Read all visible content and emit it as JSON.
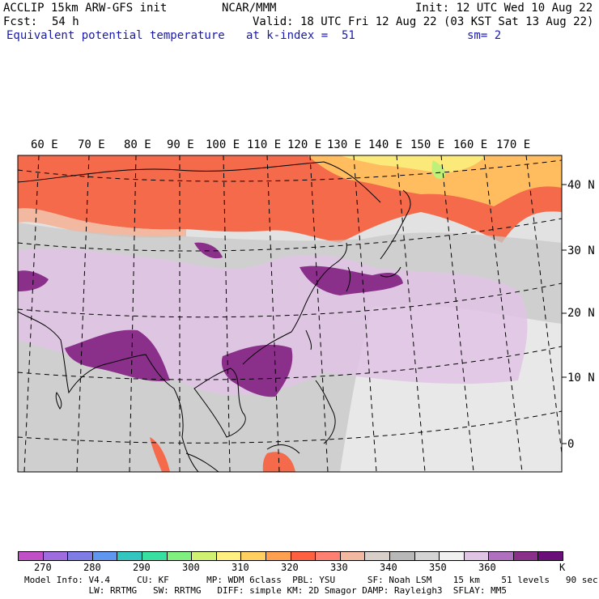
{
  "header": {
    "model": "ACCLIP 15km ARW-GFS init",
    "center": "NCAR/MMM",
    "init": "Init: 12 UTC Wed 10 Aug 22",
    "fcst_label": "Fcst:",
    "fcst_value": "54 h",
    "valid": "Valid: 18 UTC Fri 12 Aug 22 (03 KST Sat 13 Aug 22)",
    "field": "Equivalent potential temperature",
    "level": "at k-index =  51",
    "smooth": "sm= 2"
  },
  "map": {
    "lon_labels": [
      "60 E",
      "70 E",
      "80 E",
      "90 E",
      "100 E",
      "110 E",
      "120 E",
      "130 E",
      "140 E",
      "150 E",
      "160 E",
      "170 E"
    ],
    "lat_labels": [
      "40 N",
      "30 N",
      "20 N",
      "10 N",
      "0"
    ]
  },
  "colorbar": {
    "unit": "K",
    "tick_labels": [
      "270",
      "280",
      "290",
      "300",
      "310",
      "320",
      "330",
      "340",
      "350",
      "360"
    ],
    "colors": [
      "#c04fc8",
      "#9f6ce0",
      "#7f7ce6",
      "#5f96f0",
      "#31c6c0",
      "#37e0a0",
      "#7ff080",
      "#cff070",
      "#ffee80",
      "#ffd060",
      "#ffa050",
      "#ff6040",
      "#ff8070",
      "#f3b8a0",
      "#d8d0c8",
      "#b8b8b8",
      "#d4d4d4",
      "#f0f0f0",
      "#e0c4e6",
      "#b070c0",
      "#8a2f8a",
      "#6a0f7a"
    ]
  },
  "footer": {
    "line1": "Model Info: V4.4     CU: KF       MP: WDM 6class  PBL: YSU      SF: Noah LSM    15 km    51 levels   90 sec",
    "line2": "            LW: RRTMG   SW: RRTMG   DIFF: simple KM: 2D Smagor DAMP: Rayleigh3  SFLAY: MM5"
  }
}
